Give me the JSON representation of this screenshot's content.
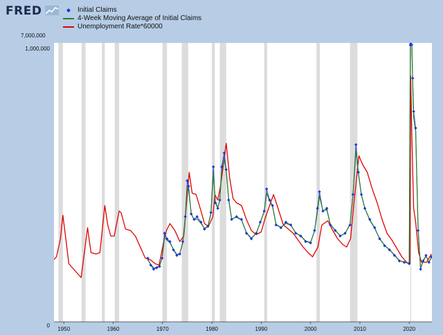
{
  "header": {
    "logo_text": "FRED",
    "logo_icon": "fred-line-chart-icon"
  },
  "colors": {
    "background": "#b7cde6",
    "initial_claims": "#1e37d6",
    "moving_average": "#2e7d32",
    "unemployment": "#e00000",
    "recession": "#dcdcdc"
  },
  "chart_data": {
    "type": "line",
    "title": "",
    "xlabel": "",
    "ylabel": "",
    "legend": {
      "position": "top-left"
    },
    "x_range": [
      1948,
      2024.6
    ],
    "y_range_main": [
      0,
      1000000
    ],
    "y_range_top_band": [
      1000000,
      7000000
    ],
    "y_tick_labels": [
      "7,000,000",
      "1,000,000",
      "0"
    ],
    "x_ticks": [
      1950,
      1960,
      1970,
      1980,
      1990,
      2000,
      2010,
      2020
    ],
    "x_tick_labels": [
      "1950",
      "1960",
      "1970",
      "1980",
      "1990",
      "2000",
      "2010",
      "2020"
    ],
    "recessions": [
      [
        1948.9,
        1949.8
      ],
      [
        1953.6,
        1954.4
      ],
      [
        1957.7,
        1958.3
      ],
      [
        1960.3,
        1961.2
      ],
      [
        1970.0,
        1970.9
      ],
      [
        1973.9,
        1975.2
      ],
      [
        1980.0,
        1980.6
      ],
      [
        1981.6,
        1982.9
      ],
      [
        1990.6,
        1991.2
      ],
      [
        2001.2,
        2001.9
      ],
      [
        2008.0,
        2009.5
      ],
      [
        2020.2,
        2020.4
      ]
    ],
    "series": [
      {
        "name": "Initial Claims",
        "values": [
          [
            1967.0,
            230000
          ],
          [
            1967.6,
            205000
          ],
          [
            1968.2,
            190000
          ],
          [
            1968.8,
            195000
          ],
          [
            1969.4,
            200000
          ],
          [
            1969.9,
            230000
          ],
          [
            1970.4,
            320000
          ],
          [
            1970.9,
            300000
          ],
          [
            1971.5,
            290000
          ],
          [
            1972.2,
            260000
          ],
          [
            1972.9,
            240000
          ],
          [
            1973.5,
            245000
          ],
          [
            1974.1,
            290000
          ],
          [
            1974.6,
            380000
          ],
          [
            1975.0,
            510000
          ],
          [
            1975.3,
            490000
          ],
          [
            1975.8,
            390000
          ],
          [
            1976.4,
            370000
          ],
          [
            1977.0,
            380000
          ],
          [
            1977.8,
            360000
          ],
          [
            1978.5,
            335000
          ],
          [
            1979.2,
            345000
          ],
          [
            1979.8,
            395000
          ],
          [
            1980.3,
            560000
          ],
          [
            1980.7,
            430000
          ],
          [
            1981.2,
            410000
          ],
          [
            1981.6,
            440000
          ],
          [
            1982.0,
            560000
          ],
          [
            1982.5,
            610000
          ],
          [
            1982.9,
            550000
          ],
          [
            1983.4,
            440000
          ],
          [
            1984.0,
            370000
          ],
          [
            1985.0,
            380000
          ],
          [
            1986.0,
            370000
          ],
          [
            1987.0,
            320000
          ],
          [
            1988.0,
            300000
          ],
          [
            1989.0,
            320000
          ],
          [
            1989.8,
            360000
          ],
          [
            1990.6,
            400000
          ],
          [
            1991.1,
            480000
          ],
          [
            1991.7,
            440000
          ],
          [
            1992.3,
            420000
          ],
          [
            1993.0,
            350000
          ],
          [
            1994.0,
            340000
          ],
          [
            1995.0,
            360000
          ],
          [
            1996.0,
            350000
          ],
          [
            1997.0,
            320000
          ],
          [
            1998.0,
            310000
          ],
          [
            1999.0,
            290000
          ],
          [
            2000.0,
            285000
          ],
          [
            2000.8,
            330000
          ],
          [
            2001.4,
            410000
          ],
          [
            2001.8,
            470000
          ],
          [
            2002.5,
            400000
          ],
          [
            2003.3,
            410000
          ],
          [
            2004.0,
            350000
          ],
          [
            2005.0,
            330000
          ],
          [
            2006.0,
            310000
          ],
          [
            2007.0,
            320000
          ],
          [
            2008.0,
            350000
          ],
          [
            2008.6,
            460000
          ],
          [
            2009.2,
            640000
          ],
          [
            2009.7,
            540000
          ],
          [
            2010.3,
            460000
          ],
          [
            2011.0,
            410000
          ],
          [
            2012.0,
            370000
          ],
          [
            2013.0,
            340000
          ],
          [
            2014.0,
            300000
          ],
          [
            2015.0,
            275000
          ],
          [
            2016.0,
            260000
          ],
          [
            2017.0,
            240000
          ],
          [
            2018.0,
            220000
          ],
          [
            2019.0,
            215000
          ],
          [
            2020.0,
            210000
          ],
          [
            2020.22,
            1000000
          ],
          [
            2020.3,
            6150000
          ],
          [
            2020.5,
            1400000
          ],
          [
            2020.7,
            880000
          ],
          [
            2020.9,
            760000
          ],
          [
            2021.3,
            700000
          ],
          [
            2021.8,
            330000
          ],
          [
            2022.3,
            190000
          ],
          [
            2022.8,
            220000
          ],
          [
            2023.4,
            240000
          ],
          [
            2024.0,
            215000
          ],
          [
            2024.5,
            235000
          ]
        ]
      },
      {
        "name": "4-Week Moving Average of Initial Claims",
        "values": [
          [
            1967.0,
            225000
          ],
          [
            1967.6,
            208000
          ],
          [
            1968.2,
            194000
          ],
          [
            1968.8,
            197000
          ],
          [
            1969.4,
            203000
          ],
          [
            1969.9,
            228000
          ],
          [
            1970.4,
            305000
          ],
          [
            1970.9,
            295000
          ],
          [
            1971.5,
            286000
          ],
          [
            1972.2,
            262000
          ],
          [
            1972.9,
            243000
          ],
          [
            1973.5,
            247000
          ],
          [
            1974.1,
            285000
          ],
          [
            1974.6,
            370000
          ],
          [
            1975.0,
            490000
          ],
          [
            1975.3,
            475000
          ],
          [
            1975.8,
            392000
          ],
          [
            1976.4,
            368000
          ],
          [
            1977.0,
            372000
          ],
          [
            1977.8,
            356000
          ],
          [
            1978.5,
            337000
          ],
          [
            1979.2,
            346000
          ],
          [
            1979.8,
            390000
          ],
          [
            1980.3,
            535000
          ],
          [
            1980.7,
            435000
          ],
          [
            1981.2,
            412000
          ],
          [
            1981.6,
            440000
          ],
          [
            1982.0,
            545000
          ],
          [
            1982.5,
            590000
          ],
          [
            1982.9,
            545000
          ],
          [
            1983.4,
            445000
          ],
          [
            1984.0,
            372000
          ],
          [
            1985.0,
            378000
          ],
          [
            1986.0,
            368000
          ],
          [
            1987.0,
            322000
          ],
          [
            1988.0,
            302000
          ],
          [
            1989.0,
            320000
          ],
          [
            1989.8,
            358000
          ],
          [
            1990.6,
            398000
          ],
          [
            1991.1,
            465000
          ],
          [
            1991.7,
            438000
          ],
          [
            1992.3,
            416000
          ],
          [
            1993.0,
            352000
          ],
          [
            1994.0,
            341000
          ],
          [
            1995.0,
            356000
          ],
          [
            1996.0,
            349000
          ],
          [
            1997.0,
            321000
          ],
          [
            1998.0,
            311000
          ],
          [
            1999.0,
            292000
          ],
          [
            2000.0,
            287000
          ],
          [
            2000.8,
            328000
          ],
          [
            2001.4,
            400000
          ],
          [
            2001.8,
            455000
          ],
          [
            2002.5,
            402000
          ],
          [
            2003.3,
            405000
          ],
          [
            2004.0,
            352000
          ],
          [
            2005.0,
            331000
          ],
          [
            2006.0,
            311000
          ],
          [
            2007.0,
            319000
          ],
          [
            2008.0,
            352000
          ],
          [
            2008.6,
            455000
          ],
          [
            2009.2,
            620000
          ],
          [
            2009.7,
            535000
          ],
          [
            2010.3,
            458000
          ],
          [
            2011.0,
            410000
          ],
          [
            2012.0,
            368000
          ],
          [
            2013.0,
            338000
          ],
          [
            2014.0,
            301000
          ],
          [
            2015.0,
            276000
          ],
          [
            2016.0,
            261000
          ],
          [
            2017.0,
            242000
          ],
          [
            2018.0,
            221000
          ],
          [
            2019.0,
            216000
          ],
          [
            2020.0,
            212000
          ],
          [
            2020.22,
            1000000
          ],
          [
            2020.35,
            4300000
          ],
          [
            2020.55,
            1300000
          ],
          [
            2020.7,
            860000
          ],
          [
            2020.9,
            740000
          ],
          [
            2021.3,
            690000
          ],
          [
            2021.8,
            340000
          ],
          [
            2022.3,
            195000
          ],
          [
            2022.8,
            218000
          ],
          [
            2023.4,
            238000
          ],
          [
            2024.0,
            216000
          ],
          [
            2024.5,
            232000
          ]
        ]
      },
      {
        "name": "Unemployment Rate*60000",
        "values": [
          [
            1948.0,
            225000
          ],
          [
            1948.5,
            235000
          ],
          [
            1949.3,
            300000
          ],
          [
            1949.8,
            385000
          ],
          [
            1950.4,
            300000
          ],
          [
            1951.0,
            210000
          ],
          [
            1952.0,
            190000
          ],
          [
            1953.0,
            170000
          ],
          [
            1953.5,
            160000
          ],
          [
            1954.3,
            270000
          ],
          [
            1954.8,
            340000
          ],
          [
            1955.5,
            250000
          ],
          [
            1956.5,
            245000
          ],
          [
            1957.3,
            250000
          ],
          [
            1958.3,
            420000
          ],
          [
            1958.9,
            350000
          ],
          [
            1959.5,
            310000
          ],
          [
            1960.2,
            310000
          ],
          [
            1961.2,
            400000
          ],
          [
            1961.6,
            395000
          ],
          [
            1962.5,
            335000
          ],
          [
            1963.5,
            330000
          ],
          [
            1964.5,
            310000
          ],
          [
            1965.5,
            270000
          ],
          [
            1966.5,
            230000
          ],
          [
            1967.5,
            225000
          ],
          [
            1968.5,
            210000
          ],
          [
            1969.3,
            205000
          ],
          [
            1970.3,
            295000
          ],
          [
            1970.8,
            330000
          ],
          [
            1971.5,
            355000
          ],
          [
            1972.5,
            330000
          ],
          [
            1973.5,
            290000
          ],
          [
            1974.3,
            310000
          ],
          [
            1975.4,
            540000
          ],
          [
            1976.0,
            465000
          ],
          [
            1976.8,
            460000
          ],
          [
            1977.8,
            400000
          ],
          [
            1978.5,
            355000
          ],
          [
            1979.3,
            345000
          ],
          [
            1980.2,
            380000
          ],
          [
            1980.6,
            460000
          ],
          [
            1981.2,
            440000
          ],
          [
            1981.8,
            495000
          ],
          [
            1982.9,
            645000
          ],
          [
            1983.6,
            520000
          ],
          [
            1984.3,
            445000
          ],
          [
            1985.0,
            430000
          ],
          [
            1986.0,
            420000
          ],
          [
            1987.0,
            370000
          ],
          [
            1988.0,
            330000
          ],
          [
            1989.0,
            315000
          ],
          [
            1990.0,
            325000
          ],
          [
            1990.8,
            375000
          ],
          [
            1991.5,
            410000
          ],
          [
            1992.5,
            460000
          ],
          [
            1993.5,
            405000
          ],
          [
            1994.5,
            350000
          ],
          [
            1995.5,
            335000
          ],
          [
            1996.5,
            320000
          ],
          [
            1997.5,
            295000
          ],
          [
            1998.5,
            270000
          ],
          [
            1999.5,
            250000
          ],
          [
            2000.4,
            235000
          ],
          [
            2001.5,
            270000
          ],
          [
            2002.3,
            350000
          ],
          [
            2003.5,
            365000
          ],
          [
            2004.5,
            330000
          ],
          [
            2005.5,
            300000
          ],
          [
            2006.5,
            280000
          ],
          [
            2007.3,
            270000
          ],
          [
            2008.1,
            300000
          ],
          [
            2008.8,
            430000
          ],
          [
            2009.8,
            600000
          ],
          [
            2010.5,
            570000
          ],
          [
            2011.5,
            540000
          ],
          [
            2012.5,
            480000
          ],
          [
            2013.5,
            430000
          ],
          [
            2014.5,
            370000
          ],
          [
            2015.5,
            320000
          ],
          [
            2016.5,
            295000
          ],
          [
            2017.5,
            265000
          ],
          [
            2018.5,
            235000
          ],
          [
            2019.5,
            215000
          ],
          [
            2020.15,
            210000
          ],
          [
            2020.3,
            888000
          ],
          [
            2020.55,
            660000
          ],
          [
            2020.9,
            410000
          ],
          [
            2021.3,
            360000
          ],
          [
            2021.9,
            250000
          ],
          [
            2022.5,
            215000
          ],
          [
            2023.5,
            215000
          ],
          [
            2024.5,
            245000
          ]
        ]
      }
    ]
  }
}
